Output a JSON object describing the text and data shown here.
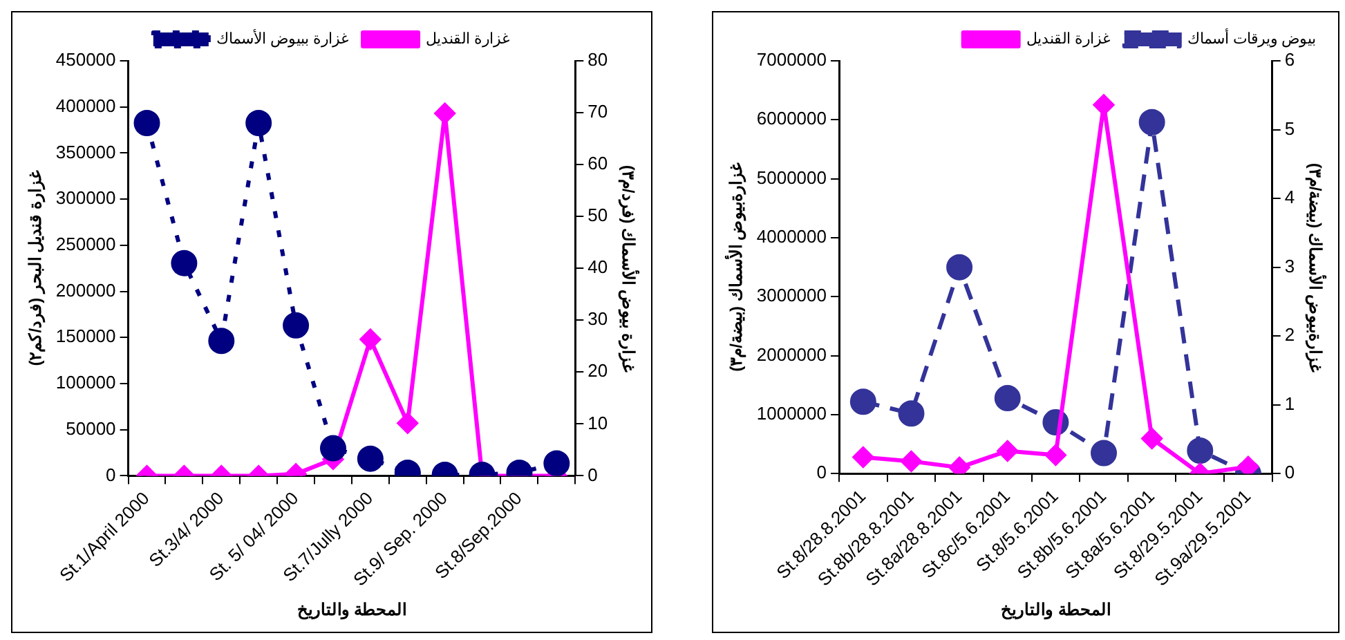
{
  "chart_data": [
    {
      "type": "line",
      "xlabel": "المحطة والتاريخ",
      "ylabel": "غزارة قنديل البحر (فرد/كم٢)",
      "y2label": "غزارة بيوض الأسماك (فرد/م٣)",
      "legend": "top",
      "categories": [
        "St.1/April 2000",
        null,
        "St.3/4/ 2000",
        null,
        "St. 5/ 04/ 2000",
        null,
        "St.7/Jully 2000",
        null,
        "St.9/ Sep. 2000",
        null,
        "St.8/Sep.2000",
        null
      ],
      "ylim": [
        0,
        450000
      ],
      "yticks": [
        0,
        50000,
        100000,
        150000,
        200000,
        250000,
        300000,
        350000,
        400000,
        450000
      ],
      "y2lim": [
        0,
        80
      ],
      "y2ticks": [
        0,
        10,
        20,
        30,
        40,
        50,
        60,
        70,
        80
      ],
      "series": [
        {
          "name": "غزارة القنديل",
          "color": "#ff00ff",
          "marker": "diamond",
          "line_style": "solid",
          "values": [
            0,
            0,
            0,
            0,
            2000,
            18000,
            148000,
            57000,
            393000,
            0,
            0,
            0
          ]
        },
        {
          "name": "غزارة ببيوض الأسماك",
          "color": "#000080",
          "marker": "circle",
          "line_style": "dotted",
          "axis": "y2",
          "values": [
            68,
            41,
            26,
            68,
            29,
            5.3,
            3.3,
            0.6,
            0.2,
            0.2,
            0.6,
            2.4
          ]
        }
      ]
    },
    {
      "type": "line",
      "xlabel": "المحطة والتاريخ",
      "ylabel": "غزارةبيوض الأسماك (بيضة/م٣)",
      "y2label": "غزارةبيوض الأسماك (بيضة/م٣)",
      "legend": "top right",
      "categories": [
        "St.8/28.8.2001",
        "St.8b/28.8.2001",
        "St.8a/28.8.2001",
        "St.8c/5.6.2001",
        "St.8/5.6.2001",
        "St.8b/5.6.2001",
        "St.8a/5.6.2001",
        "St.8/29.5.2001",
        "St.9a/29.5.2001"
      ],
      "ylim": [
        0,
        7000000
      ],
      "yticks": [
        0,
        1000000,
        2000000,
        3000000,
        4000000,
        5000000,
        6000000,
        7000000
      ],
      "y2lim": [
        0,
        6
      ],
      "y2ticks": [
        0,
        1,
        2,
        3,
        4,
        5,
        6
      ],
      "series": [
        {
          "name": "بيوض ويرقات أسماك",
          "color": "#333399",
          "marker": "circle",
          "line_style": "dashed",
          "values": [
            1220000,
            1020000,
            3500000,
            1280000,
            870000,
            350000,
            5960000,
            390000,
            0
          ]
        },
        {
          "name": "غزارة القنديل",
          "color": "#ff00ff",
          "marker": "diamond",
          "line_style": "solid",
          "axis": "y2",
          "values": [
            0.24,
            0.18,
            0.09,
            0.33,
            0.27,
            5.36,
            0.51,
            0,
            0.1
          ]
        }
      ]
    }
  ]
}
